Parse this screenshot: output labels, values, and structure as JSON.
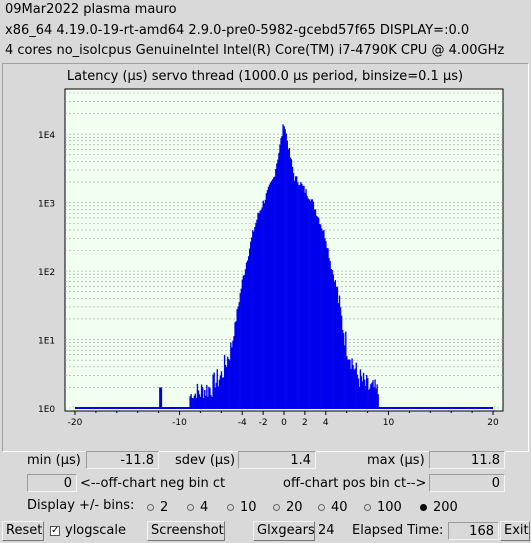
{
  "header": {
    "line1": "09Mar2022 plasma mauro",
    "line2": "x86_64  4.19.0-19-rt-amd64  2.9.0-pre0-5982-gcebd57f65  DISPLAY=:0.0",
    "line3": "4 cores  no_isolcpus   GenuineIntel  Intel(R) Core(TM) i7-4790K CPU @ 4.00GHz"
  },
  "chart_data": {
    "type": "bar",
    "title": "Latency (µs) servo thread (1000.0 µs period, binsize=0.1 µs)",
    "xlim": [
      -20,
      20
    ],
    "ylim": [
      1,
      40000
    ],
    "yscale": "log",
    "x_ticks": [
      "-20",
      "-10",
      "-4",
      "-2",
      "0",
      "2",
      "4",
      "10",
      "20"
    ],
    "x_tick_values": [
      -20,
      -10,
      -4,
      -2,
      0,
      2,
      4,
      10,
      20
    ],
    "y_ticks": [
      "1E0",
      "1E1",
      "1E2",
      "1E3",
      "1E4"
    ],
    "y_tick_values": [
      1,
      10,
      100,
      1000,
      10000
    ],
    "grid": true,
    "color": "#0000ee",
    "plot_background": "#f0fff0",
    "histogram_envelope": {
      "x": [
        -11.8,
        -7.0,
        -6.0,
        -5.0,
        -4.5,
        -4.0,
        -3.5,
        -3.0,
        -2.5,
        -2.0,
        -1.5,
        -1.0,
        -0.5,
        0.0,
        0.5,
        1.0,
        1.5,
        2.0,
        2.5,
        3.0,
        3.5,
        4.0,
        4.5,
        5.0,
        5.5,
        6.0,
        7.0,
        8.0,
        11.8
      ],
      "counts": [
        1,
        2,
        3,
        8,
        25,
        70,
        160,
        350,
        650,
        1000,
        1500,
        2300,
        5500,
        15000,
        5500,
        2300,
        2000,
        1500,
        1200,
        800,
        500,
        300,
        120,
        60,
        20,
        8,
        3,
        2,
        1
      ]
    }
  },
  "stats": {
    "min_label": "min (µs)",
    "min_value": "-11.8",
    "sdev_label": "sdev (µs)",
    "sdev_value": "1.4",
    "max_label": "max (µs)",
    "max_value": "11.8",
    "neg_value": "0",
    "neg_label": "<--off-chart neg bin ct",
    "pos_label": "off-chart pos bin ct-->",
    "pos_value": "0"
  },
  "bins": {
    "label": "Display +/- bins:",
    "options": [
      "2",
      "4",
      "10",
      "20",
      "40",
      "100",
      "200"
    ],
    "selected": "200"
  },
  "footer": {
    "reset": "Reset",
    "ylogscale": "ylogscale",
    "screenshot": "Screenshot",
    "glxgears": "Glxgears",
    "glx_count": "24",
    "elapsed_label": "Elapsed Time:",
    "elapsed_value": "168",
    "exit": "Exit"
  }
}
